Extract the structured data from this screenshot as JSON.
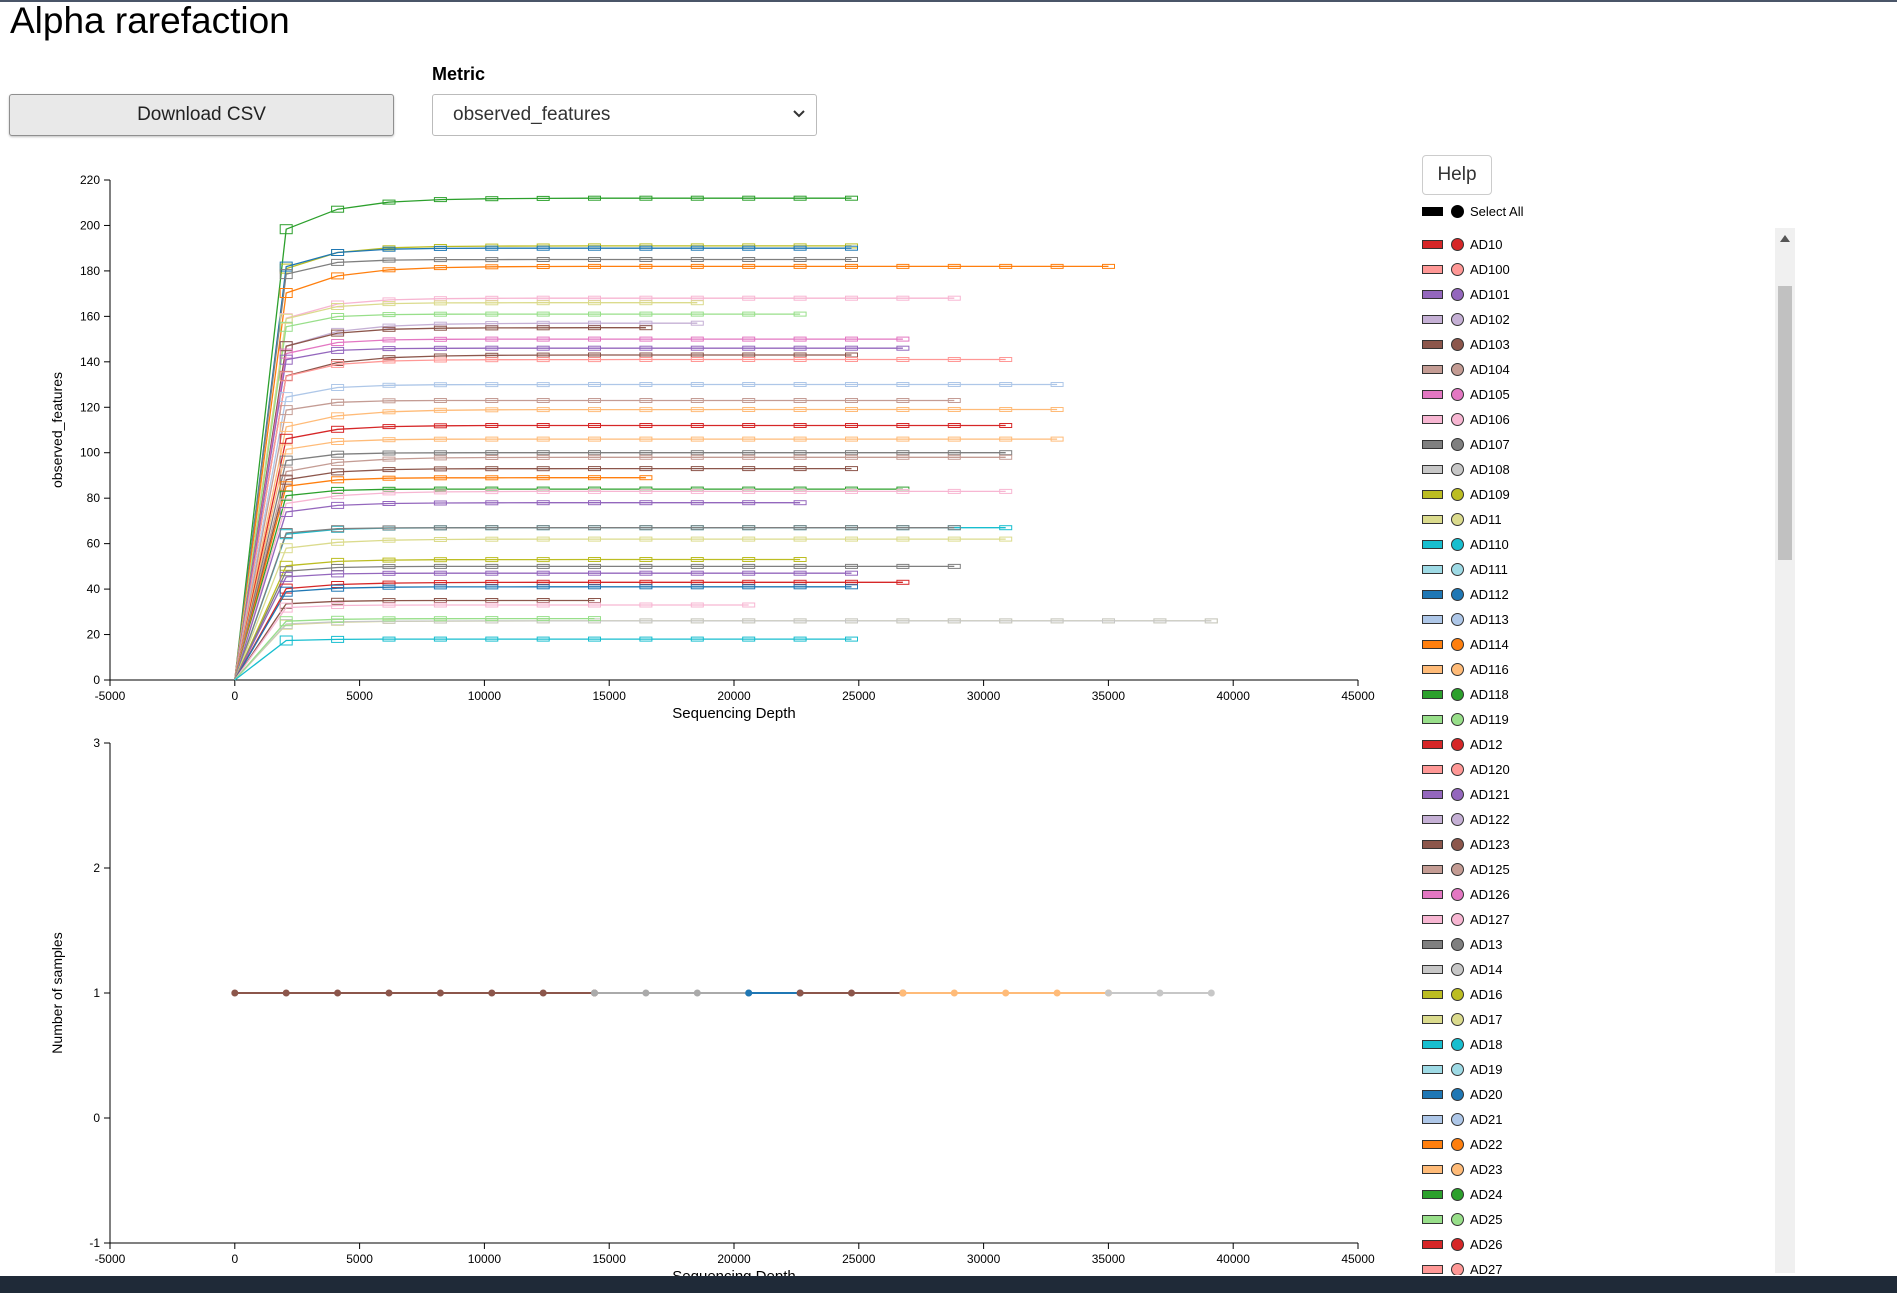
{
  "page": {
    "title": "Alpha rarefaction"
  },
  "controls": {
    "download_label": "Download CSV",
    "metric_label": "Metric",
    "metric_value": "observed_features"
  },
  "legend": {
    "help_label": "Help",
    "select_all_label": "Select All",
    "items": [
      {
        "label": "AD10",
        "color": "#d62728"
      },
      {
        "label": "AD100",
        "color": "#ff9896"
      },
      {
        "label": "AD101",
        "color": "#9467bd"
      },
      {
        "label": "AD102",
        "color": "#c5b0d5"
      },
      {
        "label": "AD103",
        "color": "#8c564b"
      },
      {
        "label": "AD104",
        "color": "#c49c94"
      },
      {
        "label": "AD105",
        "color": "#e377c2"
      },
      {
        "label": "AD106",
        "color": "#f7b6d2"
      },
      {
        "label": "AD107",
        "color": "#7f7f7f"
      },
      {
        "label": "AD108",
        "color": "#c7c7c7"
      },
      {
        "label": "AD109",
        "color": "#bcbd22"
      },
      {
        "label": "AD11",
        "color": "#dbdb8d"
      },
      {
        "label": "AD110",
        "color": "#17becf"
      },
      {
        "label": "AD111",
        "color": "#9edae5"
      },
      {
        "label": "AD112",
        "color": "#1f77b4"
      },
      {
        "label": "AD113",
        "color": "#aec7e8"
      },
      {
        "label": "AD114",
        "color": "#ff7f0e"
      },
      {
        "label": "AD116",
        "color": "#ffbb78"
      },
      {
        "label": "AD118",
        "color": "#2ca02c"
      },
      {
        "label": "AD119",
        "color": "#98df8a"
      },
      {
        "label": "AD12",
        "color": "#d62728"
      },
      {
        "label": "AD120",
        "color": "#ff9896"
      },
      {
        "label": "AD121",
        "color": "#9467bd"
      },
      {
        "label": "AD122",
        "color": "#c5b0d5"
      },
      {
        "label": "AD123",
        "color": "#8c564b"
      },
      {
        "label": "AD125",
        "color": "#c49c94"
      },
      {
        "label": "AD126",
        "color": "#e377c2"
      },
      {
        "label": "AD127",
        "color": "#f7b6d2"
      },
      {
        "label": "AD13",
        "color": "#7f7f7f"
      },
      {
        "label": "AD14",
        "color": "#c7c7c7"
      },
      {
        "label": "AD16",
        "color": "#bcbd22"
      },
      {
        "label": "AD17",
        "color": "#dbdb8d"
      },
      {
        "label": "AD18",
        "color": "#17becf"
      },
      {
        "label": "AD19",
        "color": "#9edae5"
      },
      {
        "label": "AD20",
        "color": "#1f77b4"
      },
      {
        "label": "AD21",
        "color": "#aec7e8"
      },
      {
        "label": "AD22",
        "color": "#ff7f0e"
      },
      {
        "label": "AD23",
        "color": "#ffbb78"
      },
      {
        "label": "AD24",
        "color": "#2ca02c"
      },
      {
        "label": "AD25",
        "color": "#98df8a"
      },
      {
        "label": "AD26",
        "color": "#d62728"
      },
      {
        "label": "AD27",
        "color": "#ff9896"
      }
    ]
  },
  "chart_data": [
    {
      "type": "line",
      "title": "",
      "xlabel": "Sequencing Depth",
      "ylabel": "observed_features",
      "xlim": [
        -5000,
        45000
      ],
      "ylim": [
        0,
        220
      ],
      "x_ticks": [
        -5000,
        0,
        5000,
        10000,
        15000,
        20000,
        25000,
        30000,
        35000,
        40000,
        45000
      ],
      "y_ticks": [
        0,
        20,
        40,
        60,
        80,
        100,
        120,
        140,
        160,
        180,
        200,
        220
      ],
      "grid": false,
      "x_depths": [
        0,
        2059,
        4118,
        6177,
        8236,
        10295,
        12354,
        14413,
        16472,
        18531,
        20590,
        22649,
        24708,
        26767,
        28826,
        30885,
        32944,
        35003,
        37062,
        39121
      ],
      "series": [
        {
          "color": "#2ca02c",
          "plateau": 212,
          "max_depth": 25000
        },
        {
          "color": "#bcbd22",
          "plateau": 191,
          "max_depth": 25000
        },
        {
          "color": "#1f77b4",
          "plateau": 190,
          "max_depth": 25000
        },
        {
          "color": "#7f7f7f",
          "plateau": 185,
          "max_depth": 25000
        },
        {
          "color": "#ff7f0e",
          "plateau": 182,
          "max_depth": 35300
        },
        {
          "color": "#f7b6d2",
          "plateau": 168,
          "max_depth": 29000
        },
        {
          "color": "#dbdb8d",
          "plateau": 166,
          "max_depth": 20000
        },
        {
          "color": "#98df8a",
          "plateau": 161,
          "max_depth": 23000
        },
        {
          "color": "#c5b0d5",
          "plateau": 157,
          "max_depth": 19000
        },
        {
          "color": "#8c564b",
          "plateau": 155,
          "max_depth": 17000
        },
        {
          "color": "#e377c2",
          "plateau": 150,
          "max_depth": 27000
        },
        {
          "color": "#9467bd",
          "plateau": 146,
          "max_depth": 27000
        },
        {
          "color": "#8c564b",
          "plateau": 143,
          "max_depth": 25000
        },
        {
          "color": "#ff9896",
          "plateau": 141,
          "max_depth": 31000
        },
        {
          "color": "#aec7e8",
          "plateau": 130,
          "max_depth": 33000
        },
        {
          "color": "#c49c94",
          "plateau": 123,
          "max_depth": 29000
        },
        {
          "color": "#ffbb78",
          "plateau": 119,
          "max_depth": 35000
        },
        {
          "color": "#d62728",
          "plateau": 112,
          "max_depth": 31000
        },
        {
          "color": "#ffbb78",
          "plateau": 106,
          "max_depth": 35000
        },
        {
          "color": "#7f7f7f",
          "plateau": 100,
          "max_depth": 31000
        },
        {
          "color": "#c49c94",
          "plateau": 98,
          "max_depth": 31000
        },
        {
          "color": "#8c564b",
          "plateau": 93,
          "max_depth": 25000
        },
        {
          "color": "#ff7f0e",
          "plateau": 89,
          "max_depth": 17000
        },
        {
          "color": "#2ca02c",
          "plateau": 84,
          "max_depth": 27000
        },
        {
          "color": "#f7b6d2",
          "plateau": 83,
          "max_depth": 31000
        },
        {
          "color": "#9467bd",
          "plateau": 78,
          "max_depth": 23000
        },
        {
          "color": "#17becf",
          "plateau": 67,
          "max_depth": 31000
        },
        {
          "color": "#7f7f7f",
          "plateau": 67,
          "max_depth": 29000
        },
        {
          "color": "#dbdb8d",
          "plateau": 62,
          "max_depth": 31000
        },
        {
          "color": "#bcbd22",
          "plateau": 53,
          "max_depth": 23000
        },
        {
          "color": "#7f7f7f",
          "plateau": 50,
          "max_depth": 29000
        },
        {
          "color": "#9467bd",
          "plateau": 47,
          "max_depth": 25000
        },
        {
          "color": "#d62728",
          "plateau": 43,
          "max_depth": 27000
        },
        {
          "color": "#1f77b4",
          "plateau": 41,
          "max_depth": 25000
        },
        {
          "color": "#8c564b",
          "plateau": 35,
          "max_depth": 15000
        },
        {
          "color": "#f7b6d2",
          "plateau": 33,
          "max_depth": 21000
        },
        {
          "color": "#dbdb8d",
          "plateau": 26,
          "max_depth": 39500
        },
        {
          "color": "#c7c7c7",
          "plateau": 26,
          "max_depth": 39500
        },
        {
          "color": "#98df8a",
          "plateau": 27,
          "max_depth": 15000
        },
        {
          "color": "#17becf",
          "plateau": 18,
          "max_depth": 25000
        }
      ]
    },
    {
      "type": "line",
      "title": "",
      "xlabel": "Sequencing Depth",
      "ylabel": "Number of samples",
      "xlim": [
        -5000,
        45000
      ],
      "ylim": [
        -1,
        3
      ],
      "x_ticks": [
        -5000,
        0,
        5000,
        10000,
        15000,
        20000,
        25000,
        30000,
        35000,
        40000,
        45000
      ],
      "y_ticks": [
        -1,
        0,
        1,
        2,
        3
      ],
      "grid": false,
      "series": [
        {
          "color": "#8c564b",
          "x": [
            0,
            2059,
            4118,
            6177,
            8236,
            10295,
            12354,
            14413
          ],
          "y": [
            1,
            1,
            1,
            1,
            1,
            1,
            1,
            1
          ]
        },
        {
          "color": "#aaaaaa",
          "x": [
            14413,
            16472,
            18531,
            20590
          ],
          "y": [
            1,
            1,
            1,
            1
          ]
        },
        {
          "color": "#1f77b4",
          "x": [
            20590,
            22649
          ],
          "y": [
            1,
            1
          ]
        },
        {
          "color": "#8c564b",
          "x": [
            22649,
            24708,
            26767
          ],
          "y": [
            1,
            1,
            1
          ]
        },
        {
          "color": "#ffbb78",
          "x": [
            26767,
            28826,
            30885,
            32944,
            35003
          ],
          "y": [
            1,
            1,
            1,
            1,
            1
          ]
        },
        {
          "color": "#c7c7c7",
          "x": [
            35003,
            37062,
            39121
          ],
          "y": [
            1,
            1,
            1
          ]
        }
      ]
    }
  ]
}
